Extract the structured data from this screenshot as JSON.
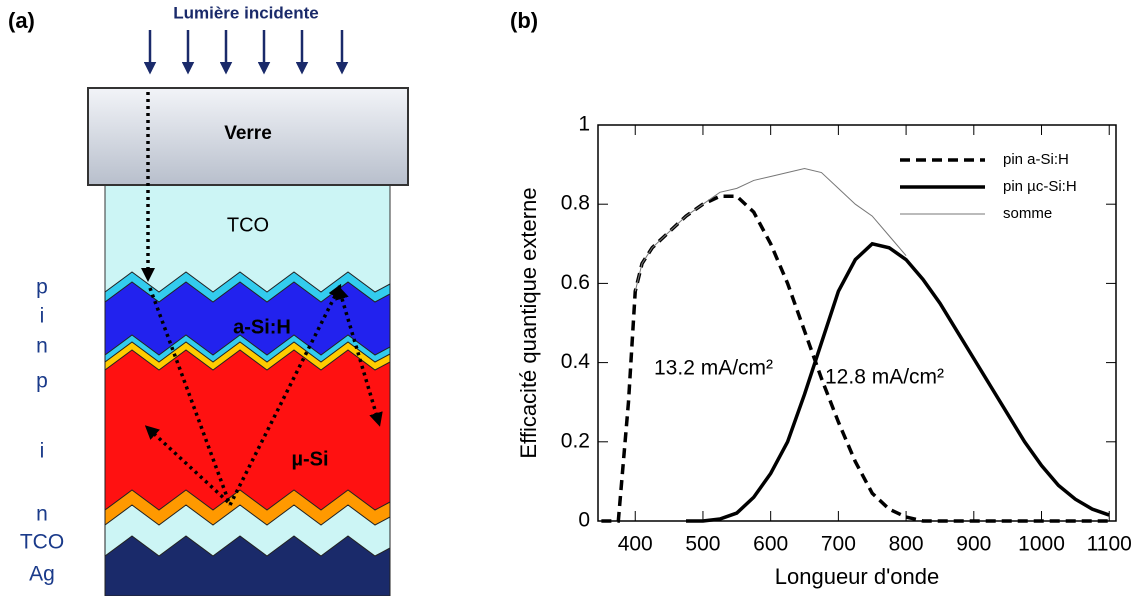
{
  "diagram": {
    "panel": "(a)",
    "light": "Lumière incidente",
    "glass": "Verre",
    "tco": "TCO",
    "layers": [
      "a-Si:H",
      "µ-Si"
    ],
    "side_labels": [
      "p",
      "i",
      "n",
      "p",
      "i",
      "n",
      "TCO",
      "Ag"
    ]
  },
  "chart_data": {
    "type": "line",
    "panel": "(b)",
    "x_label": "Longueur d'onde",
    "y_label": "Efficacité quantique externe",
    "x": [
      350,
      375,
      390,
      400,
      410,
      425,
      450,
      475,
      500,
      525,
      550,
      575,
      600,
      625,
      650,
      675,
      700,
      725,
      750,
      775,
      800,
      825,
      850,
      875,
      900,
      925,
      950,
      975,
      1000,
      1025,
      1050,
      1075,
      1100
    ],
    "series": [
      {
        "name": "pin a-Si:H",
        "color": "#000000",
        "dash": "dashed",
        "width": 3.5,
        "values": [
          0,
          0,
          0.3,
          0.58,
          0.65,
          0.69,
          0.73,
          0.77,
          0.8,
          0.82,
          0.82,
          0.78,
          0.7,
          0.6,
          0.48,
          0.36,
          0.25,
          0.15,
          0.07,
          0.03,
          0.01,
          0,
          0,
          0,
          0,
          0,
          0,
          0,
          0,
          0,
          0,
          0,
          0
        ]
      },
      {
        "name": "pin µc-Si:H",
        "color": "#000000",
        "dash": "solid",
        "width": 3.5,
        "values": [
          null,
          null,
          null,
          null,
          null,
          null,
          null,
          0,
          0,
          0.005,
          0.02,
          0.06,
          0.12,
          0.2,
          0.32,
          0.45,
          0.58,
          0.66,
          0.7,
          0.69,
          0.66,
          0.61,
          0.55,
          0.48,
          0.41,
          0.34,
          0.27,
          0.2,
          0.14,
          0.09,
          0.055,
          0.03,
          0.015
        ]
      },
      {
        "name": "somme",
        "color": "#777777",
        "dash": "solid",
        "width": 1,
        "values": [
          null,
          null,
          null,
          0.58,
          0.65,
          0.69,
          0.73,
          0.77,
          0.8,
          0.83,
          0.84,
          0.86,
          0.87,
          0.88,
          0.89,
          0.88,
          0.84,
          0.8,
          0.77,
          0.72,
          0.67,
          null,
          null,
          null,
          null,
          null,
          null,
          null,
          null,
          null,
          null,
          null,
          null
        ]
      }
    ],
    "annotations": [
      "13.2 mA/cm²",
      "12.8 mA/cm²"
    ],
    "xlim": [
      345,
      1110
    ],
    "xticks": [
      400,
      500,
      600,
      700,
      800,
      900,
      1000,
      1100
    ],
    "ylim": [
      0,
      1
    ],
    "yticks": [
      0,
      0.2,
      0.4,
      0.6,
      0.8,
      1
    ]
  }
}
